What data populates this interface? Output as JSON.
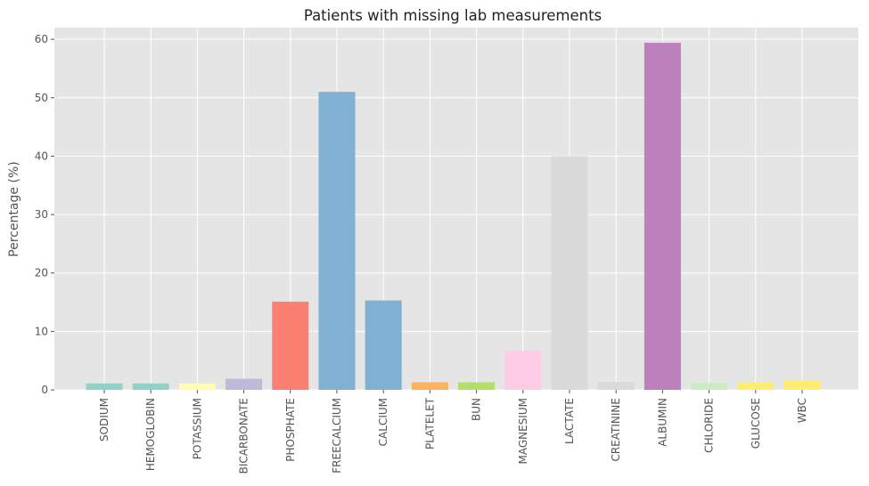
{
  "chart_data": {
    "type": "bar",
    "title": "Patients with missing lab measurements",
    "xlabel": "",
    "ylabel": "Percentage (%)",
    "ylim": [
      0,
      62
    ],
    "yticks": [
      "0",
      "10",
      "20",
      "30",
      "40",
      "50",
      "60"
    ],
    "grid": true,
    "categories": [
      "SODIUM",
      "HEMOGLOBIN",
      "POTASSIUM",
      "BICARBONATE",
      "PHOSPHATE",
      "FREECALCIUM",
      "CALCIUM",
      "PLATELET",
      "BUN",
      "MAGNESIUM",
      "LACTATE",
      "CREATININE",
      "ALBUMIN",
      "CHLORIDE",
      "GLUCOSE",
      "WBC"
    ],
    "values": [
      1.1,
      1.1,
      1.1,
      1.9,
      15.1,
      51.0,
      15.3,
      1.3,
      1.3,
      6.7,
      40.0,
      1.3,
      59.4,
      1.2,
      1.2,
      1.6
    ],
    "colors": [
      "#8dd3c7",
      "#8dd3c7",
      "#ffffb3",
      "#bebada",
      "#fb8072",
      "#80b1d3",
      "#80b1d3",
      "#fdb462",
      "#b3de69",
      "#fccde5",
      "#d9d9d9",
      "#d9d9d9",
      "#bc80bd",
      "#ccebc5",
      "#ffed6f",
      "#ffed6f"
    ],
    "plot_background": "#e5e5e5",
    "grid_color": "#ffffff"
  }
}
